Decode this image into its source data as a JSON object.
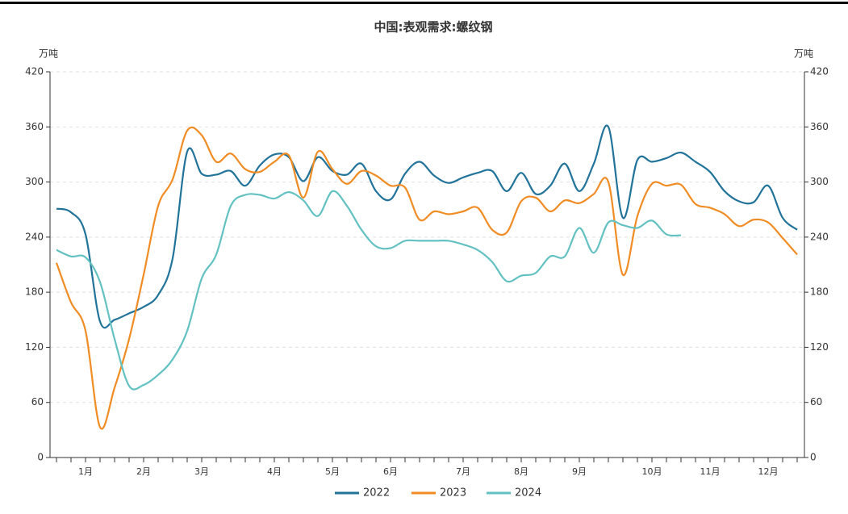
{
  "chart_data": {
    "type": "line",
    "title": "中国:表观需求:螺纹钢",
    "ylabel": "万吨",
    "y2label": "万吨",
    "categories": [
      null,
      null,
      "1月",
      null,
      null,
      null,
      "2月",
      null,
      null,
      null,
      "3月",
      null,
      null,
      null,
      null,
      "4月",
      null,
      null,
      null,
      "5月",
      null,
      null,
      null,
      "6月",
      null,
      null,
      null,
      null,
      "7月",
      null,
      null,
      null,
      "8月",
      null,
      null,
      null,
      "9月",
      null,
      null,
      null,
      null,
      "10月",
      null,
      null,
      null,
      "11月",
      null,
      null,
      null,
      "12月",
      null,
      null
    ],
    "series": [
      {
        "name": "2022",
        "color": "#21739a",
        "values": [
          271,
          267,
          243,
          148,
          150,
          157,
          164,
          177,
          217,
          333,
          309,
          308,
          312,
          296,
          318,
          330,
          327,
          301,
          327,
          312,
          308,
          320,
          290,
          281,
          309,
          322,
          307,
          299,
          305,
          310,
          312,
          290,
          310,
          287,
          296,
          320,
          290,
          320,
          360,
          261,
          324,
          322,
          326,
          332,
          322,
          311,
          290,
          279,
          278,
          296,
          261,
          248
        ]
      },
      {
        "name": "2023",
        "color": "#f08c23",
        "values": [
          212,
          169,
          138,
          33,
          76,
          129,
          199,
          274,
          303,
          356,
          351,
          322,
          331,
          314,
          311,
          322,
          329,
          283,
          333,
          314,
          298,
          312,
          307,
          296,
          294,
          259,
          268,
          265,
          268,
          272,
          248,
          245,
          279,
          283,
          268,
          280,
          277,
          287,
          300,
          199,
          263,
          298,
          296,
          297,
          276,
          272,
          265,
          252,
          259,
          256,
          239,
          221
        ]
      },
      {
        "name": "2024",
        "color": "#63c1c2",
        "values": [
          226,
          219,
          218,
          191,
          129,
          78,
          79,
          90,
          107,
          138,
          195,
          221,
          274,
          286,
          286,
          282,
          289,
          280,
          263,
          290,
          274,
          248,
          230,
          228,
          236,
          236,
          236,
          236,
          232,
          226,
          213,
          192,
          198,
          201,
          219,
          219,
          250,
          223,
          256,
          253,
          250,
          258,
          243,
          242,
          null,
          null,
          null,
          null,
          null,
          null,
          null,
          null
        ]
      }
    ],
    "ylim": [
      0,
      420
    ],
    "yticks": [
      0,
      60,
      120,
      180,
      240,
      300,
      360,
      420
    ],
    "y2lim": [
      0,
      420
    ],
    "y2ticks": [
      0,
      60,
      120,
      180,
      240,
      300,
      360,
      420
    ],
    "grid": true,
    "legend": "bottom"
  }
}
